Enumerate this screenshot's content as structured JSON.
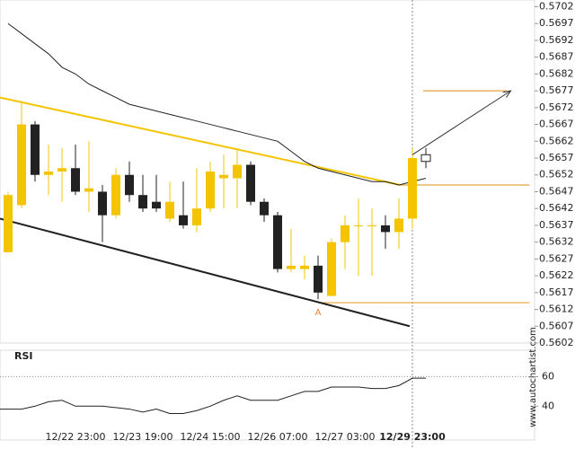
{
  "chart_data": {
    "type": "candlestick",
    "categories": [
      null,
      null,
      null,
      null,
      null,
      "12/22 23:00",
      null,
      null,
      null,
      null,
      "12/23 19:00",
      null,
      null,
      null,
      null,
      "12/24 15:00",
      null,
      null,
      null,
      null,
      "12/26 07:00",
      null,
      null,
      null,
      null,
      "12/27 03:00",
      null,
      null,
      null,
      null,
      "12/29 23:00",
      null
    ],
    "highlight_category": 30,
    "open": [
      0.5629,
      0.5643,
      0.5667,
      0.5652,
      0.5653,
      0.5654,
      0.5647,
      0.5647,
      0.564,
      0.5652,
      0.5646,
      0.5644,
      0.5639,
      0.564,
      0.5637,
      0.5642,
      0.5651,
      0.5651,
      0.5655,
      0.5644,
      0.564,
      0.5624,
      0.5624,
      0.5625,
      0.5616,
      0.5632,
      0.5637,
      0.5637,
      0.5637,
      0.5635,
      0.5639,
      0.5656
    ],
    "high": [
      0.5647,
      0.5674,
      0.5668,
      0.5661,
      0.566,
      0.5661,
      0.5662,
      0.5649,
      0.5654,
      0.5656,
      0.5652,
      0.5652,
      0.565,
      0.565,
      0.5654,
      0.5656,
      0.5658,
      0.566,
      0.5656,
      0.5645,
      0.5641,
      0.5636,
      0.5628,
      0.5628,
      0.5633,
      0.564,
      0.5645,
      0.5642,
      0.564,
      0.5645,
      0.566,
      0.566
    ],
    "low": [
      0.5629,
      0.5642,
      0.565,
      0.5646,
      0.5644,
      0.5646,
      0.5641,
      0.5632,
      0.5639,
      0.5644,
      0.5641,
      0.5641,
      0.5638,
      0.5636,
      0.5635,
      0.5641,
      0.5642,
      0.5642,
      0.5643,
      0.5638,
      0.5623,
      0.5623,
      0.5621,
      0.5615,
      0.5616,
      0.5624,
      0.5622,
      0.5622,
      0.563,
      0.563,
      0.5636,
      0.5654
    ],
    "close": [
      0.5646,
      0.5667,
      0.5652,
      0.5653,
      0.5654,
      0.5647,
      0.5648,
      0.564,
      0.5652,
      0.5646,
      0.5642,
      0.5642,
      0.5644,
      0.5637,
      0.5642,
      0.5653,
      0.5652,
      0.5655,
      0.5644,
      0.564,
      0.5624,
      0.5625,
      0.5625,
      0.5617,
      0.5632,
      0.5637,
      0.5637,
      0.5637,
      0.5635,
      0.5639,
      0.5657,
      0.5658
    ],
    "pending_index": 31,
    "up_color": "#f5c400",
    "down_color": "#222222",
    "pending_color": "#ffffff",
    "moving_average": {
      "color": "#222222",
      "values": [
        0.5697,
        0.5694,
        0.5691,
        0.5688,
        0.5684,
        0.5682,
        0.5679,
        0.5677,
        0.5675,
        0.5673,
        0.5672,
        0.5671,
        0.567,
        0.5669,
        0.5668,
        0.5667,
        0.5666,
        0.5665,
        0.5664,
        0.5663,
        0.5662,
        0.5659,
        0.5656,
        0.5654,
        0.5653,
        0.5652,
        0.5651,
        0.565,
        0.565,
        0.5649,
        0.565,
        0.5651
      ]
    },
    "trend_lines": [
      {
        "color": "#f5c400",
        "start": [
          -0.6,
          0.5675
        ],
        "end": [
          29.1,
          0.5649
        ]
      },
      {
        "color": "#222222",
        "start": [
          -0.6,
          0.5639
        ],
        "end": [
          29.8,
          0.5607
        ]
      }
    ],
    "levels": [
      {
        "value": 0.5677,
        "from": 30.8,
        "to": 37.0,
        "color": "#e8a33a"
      },
      {
        "value": 0.5649,
        "from": 29.0,
        "to": 38.7,
        "color": "#e8a33a"
      },
      {
        "value": 0.5614,
        "from": 23.0,
        "to": 38.7,
        "color": "#e8a33a"
      }
    ],
    "forecast_arrow": {
      "start": [
        30.0,
        0.5658
      ],
      "end": [
        37.3,
        0.5677
      ]
    },
    "pattern_label": {
      "text": "A",
      "index": 23.0,
      "value": 0.5613
    },
    "ylim": [
      0.5602,
      0.5704
    ],
    "yticks": [
      0.5702,
      0.5697,
      0.5692,
      0.5687,
      0.5682,
      0.5677,
      0.5672,
      0.5667,
      0.5662,
      0.5657,
      0.5652,
      0.5647,
      0.5642,
      0.5637,
      0.5632,
      0.5627,
      0.5622,
      0.5617,
      0.5612,
      0.5607,
      0.5602
    ],
    "rsi": {
      "title": "RSI",
      "color": "#222222",
      "values": [
        38,
        38,
        40,
        43,
        44,
        40,
        40,
        40,
        39,
        38,
        36,
        38,
        35,
        35,
        37,
        40,
        44,
        47,
        44,
        44,
        44,
        47,
        50,
        50,
        53,
        53,
        53,
        52,
        52,
        54,
        59,
        59
      ],
      "ylim": [
        17,
        78
      ],
      "yticks": [
        60,
        40
      ],
      "reference": 60
    },
    "source": "www.autochartist.com"
  }
}
